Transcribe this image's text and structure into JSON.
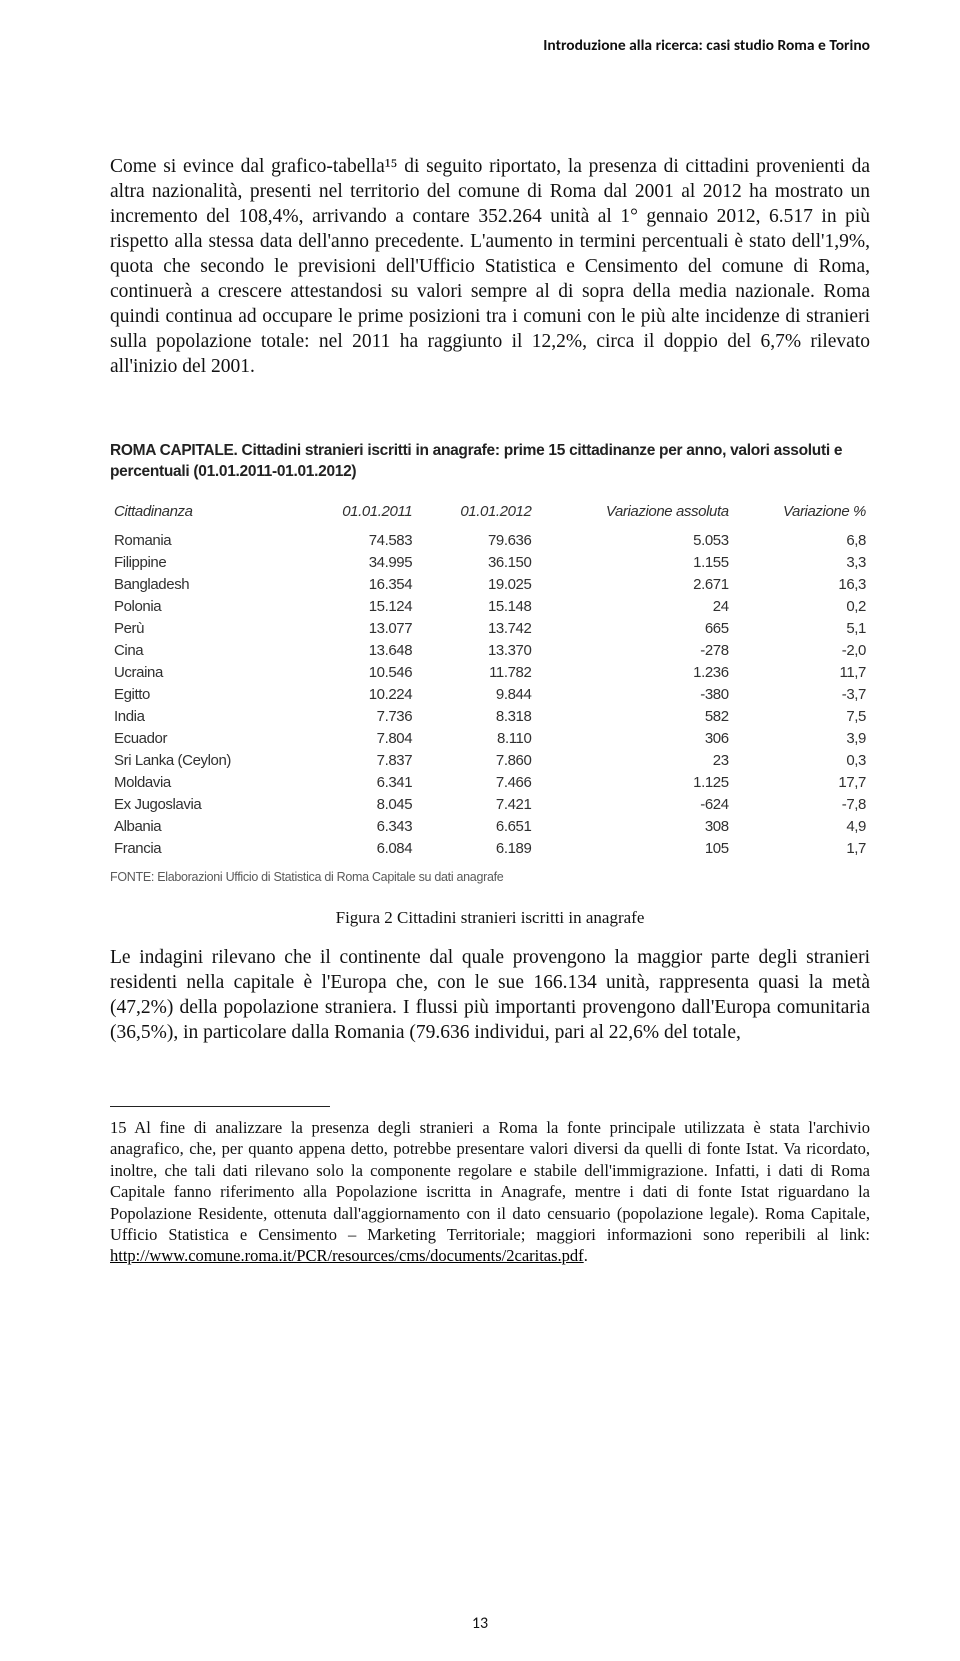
{
  "header": "Introduzione alla ricerca: casi studio Roma e Torino",
  "para1": "Come si evince dal grafico-tabella¹⁵ di seguito riportato, la presenza di cittadini provenienti da altra nazionalità, presenti nel territorio del comune di Roma dal 2001 al 2012 ha mostrato un incremento del 108,4%, arrivando a contare 352.264 unità al 1° gennaio 2012, 6.517 in più rispetto alla stessa data dell'anno precedente. L'aumento in termini percentuali è stato dell'1,9%, quota che secondo le previsioni dell'Ufficio Statistica e Censimento del comune di Roma, continuerà a crescere attestandosi su valori sempre al di sopra della media nazionale. Roma quindi continua ad occupare le prime posizioni tra i comuni con le più alte incidenze di stranieri sulla popolazione totale: nel 2011 ha raggiunto il 12,2%, circa il doppio del 6,7% rilevato all'inizio del 2001.",
  "table": {
    "title": "ROMA CAPITALE. Cittadini stranieri iscritti in anagrafe: prime 15 cittadinanze per anno, valori assoluti e percentuali (01.01.2011-01.01.2012)",
    "columns": [
      "Cittadinanza",
      "01.01.2011",
      "01.01.2012",
      "Variazione assoluta",
      "Variazione %"
    ],
    "rows": [
      [
        "Romania",
        "74.583",
        "79.636",
        "5.053",
        "6,8"
      ],
      [
        "Filippine",
        "34.995",
        "36.150",
        "1.155",
        "3,3"
      ],
      [
        "Bangladesh",
        "16.354",
        "19.025",
        "2.671",
        "16,3"
      ],
      [
        "Polonia",
        "15.124",
        "15.148",
        "24",
        "0,2"
      ],
      [
        "Perù",
        "13.077",
        "13.742",
        "665",
        "5,1"
      ],
      [
        "Cina",
        "13.648",
        "13.370",
        "-278",
        "-2,0"
      ],
      [
        "Ucraina",
        "10.546",
        "11.782",
        "1.236",
        "11,7"
      ],
      [
        "Egitto",
        "10.224",
        "9.844",
        "-380",
        "-3,7"
      ],
      [
        "India",
        "7.736",
        "8.318",
        "582",
        "7,5"
      ],
      [
        "Ecuador",
        "7.804",
        "8.110",
        "306",
        "3,9"
      ],
      [
        "Sri Lanka (Ceylon)",
        "7.837",
        "7.860",
        "23",
        "0,3"
      ],
      [
        "Moldavia",
        "6.341",
        "7.466",
        "1.125",
        "17,7"
      ],
      [
        "Ex Jugoslavia",
        "8.045",
        "7.421",
        "-624",
        "-7,8"
      ],
      [
        "Albania",
        "6.343",
        "6.651",
        "308",
        "4,9"
      ],
      [
        "Francia",
        "6.084",
        "6.189",
        "105",
        "1,7"
      ]
    ],
    "source": "FONTE: Elaborazioni Ufficio di Statistica di Roma Capitale su dati anagrafe"
  },
  "figure_caption": "Figura 2 Cittadini stranieri iscritti in anagrafe",
  "para2": "Le indagini rilevano che il continente dal quale provengono la maggior parte degli stranieri residenti nella capitale è l'Europa che, con le sue 166.134 unità, rappresenta quasi la metà (47,2%) della popolazione straniera. I flussi più importanti provengono dall'Europa comunitaria (36,5%), in particolare dalla Romania (79.636 individui, pari al 22,6% del totale,",
  "footnote": {
    "num": "15",
    "text": "Al fine di analizzare la presenza degli stranieri a Roma la fonte principale utilizzata è stata l'archivio anagrafico, che, per quanto appena detto, potrebbe presentare valori diversi da quelli di fonte Istat. Va ricordato, inoltre, che tali dati rilevano solo la componente regolare e stabile dell'immigrazione. Infatti, i dati di Roma Capitale fanno riferimento alla Popolazione iscritta in Anagrafe, mentre i dati di fonte Istat riguardano la Popolazione Residente, ottenuta dall'aggiornamento con il dato censuario (popolazione legale). Roma Capitale, Ufficio Statistica e Censimento – Marketing Territoriale; maggiori informazioni sono reperibili al link: ",
    "link": "http://www.comune.roma.it/PCR/resources/cms/documents/2caritas.pdf"
  },
  "page_number": "13"
}
